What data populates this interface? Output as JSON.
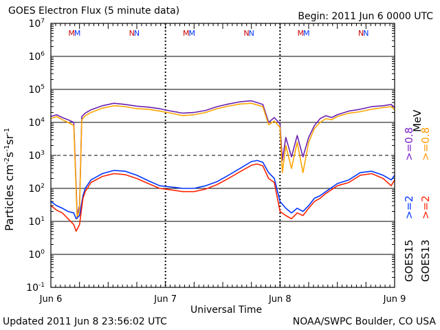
{
  "title": "GOES Electron Flux (5 minute data)",
  "begin": "Begin: 2011 Jun 6 0000 UTC",
  "updated": "Updated 2011 Jun  8 23:56:02 UTC",
  "credit": "NOAA/SWPC Boulder, CO USA",
  "legend": {
    "goes15": "GOES15",
    "goes13": "GOES13",
    "gt2": ">=2",
    "gt08": ">=0.8",
    "mev": "MeV"
  },
  "colors": {
    "goes15_2": "#0033ff",
    "goes13_2": "#ff2200",
    "goes15_08": "#6a1fb0",
    "goes13_08": "#ffa500"
  },
  "marks": [
    {
      "label": "M",
      "day": 0.2
    },
    {
      "label": "N",
      "day": 0.73
    },
    {
      "label": "M",
      "day": 1.2
    },
    {
      "label": "N",
      "day": 1.73
    },
    {
      "label": "M",
      "day": 2.2
    },
    {
      "label": "N",
      "day": 2.73
    }
  ],
  "chart_data": {
    "type": "line",
    "title": "GOES Electron Flux (5 minute data)",
    "xlabel": "Universal Time",
    "ylabel": "Particles cm-2s-1sr-1",
    "x_unit": "days since 2011 Jun 6 0000 UTC",
    "xlim": [
      0,
      3
    ],
    "ylim": [
      0.1,
      10000000
    ],
    "yscale": "log",
    "x_ticks": [
      {
        "x": 0,
        "label": "Jun 6"
      },
      {
        "x": 1,
        "label": "Jun 7"
      },
      {
        "x": 2,
        "label": "Jun 8"
      },
      {
        "x": 3,
        "label": "Jun 9"
      }
    ],
    "y_ticks": [
      {
        "base": "10",
        "exp": "7"
      },
      {
        "base": "10",
        "exp": "6"
      },
      {
        "base": "10",
        "exp": "5"
      },
      {
        "base": "10",
        "exp": "4"
      },
      {
        "base": "10",
        "exp": "3"
      },
      {
        "base": "10",
        "exp": "2"
      },
      {
        "base": "10",
        "exp": "1"
      },
      {
        "base": "10",
        "exp": "0"
      },
      {
        "base": "10",
        "exp": "-1"
      }
    ],
    "threshold": 1000,
    "series": [
      {
        "name": "GOES15 >=0.8 MeV",
        "color": "#6a1fb0",
        "x": [
          0,
          0.05,
          0.1,
          0.15,
          0.2,
          0.22,
          0.23,
          0.25,
          0.27,
          0.3,
          0.35,
          0.45,
          0.55,
          0.65,
          0.75,
          0.85,
          0.95,
          1.05,
          1.15,
          1.25,
          1.35,
          1.45,
          1.55,
          1.65,
          1.75,
          1.85,
          1.9,
          1.95,
          2.0,
          2.02,
          2.05,
          2.1,
          2.15,
          2.2,
          2.25,
          2.3,
          2.35,
          2.4,
          2.45,
          2.5,
          2.6,
          2.7,
          2.8,
          2.9,
          2.97,
          3.0
        ],
        "y": [
          15000,
          17000,
          14000,
          12000,
          10000,
          120,
          15,
          30,
          15000,
          19000,
          24000,
          32000,
          38000,
          35000,
          31000,
          29000,
          26000,
          22000,
          19000,
          20000,
          23000,
          30000,
          36000,
          42000,
          45000,
          35000,
          10000,
          14000,
          9000,
          700,
          3500,
          900,
          4000,
          900,
          3500,
          8000,
          13000,
          16000,
          14000,
          17000,
          22000,
          25000,
          30000,
          32000,
          35000,
          28000
        ]
      },
      {
        "name": "GOES13 >=0.8 MeV",
        "color": "#ffa500",
        "x": [
          0,
          0.05,
          0.1,
          0.15,
          0.2,
          0.22,
          0.23,
          0.25,
          0.27,
          0.3,
          0.35,
          0.45,
          0.55,
          0.65,
          0.75,
          0.85,
          0.95,
          1.05,
          1.15,
          1.25,
          1.35,
          1.45,
          1.55,
          1.65,
          1.75,
          1.85,
          1.9,
          1.95,
          2.0,
          2.02,
          2.05,
          2.1,
          2.15,
          2.2,
          2.25,
          2.3,
          2.35,
          2.4,
          2.45,
          2.5,
          2.6,
          2.7,
          2.8,
          2.9,
          2.97,
          3.0
        ],
        "y": [
          13000,
          15000,
          12000,
          10000,
          8000,
          90,
          12,
          25,
          12000,
          16000,
          20000,
          27000,
          32000,
          30000,
          26000,
          25000,
          22000,
          19000,
          16000,
          17000,
          20000,
          26000,
          31000,
          36000,
          38000,
          30000,
          8500,
          11000,
          7000,
          300,
          2000,
          400,
          2500,
          300,
          2500,
          6500,
          10000,
          13000,
          12000,
          15000,
          19000,
          21000,
          25000,
          28000,
          30000,
          24000
        ]
      },
      {
        "name": "GOES15 >=2 MeV",
        "color": "#0033ff",
        "x": [
          0,
          0.05,
          0.1,
          0.15,
          0.2,
          0.22,
          0.25,
          0.28,
          0.3,
          0.35,
          0.45,
          0.55,
          0.65,
          0.75,
          0.85,
          0.95,
          1.05,
          1.15,
          1.25,
          1.35,
          1.45,
          1.55,
          1.65,
          1.75,
          1.8,
          1.85,
          1.9,
          1.95,
          2.0,
          2.05,
          2.1,
          2.15,
          2.2,
          2.25,
          2.3,
          2.35,
          2.4,
          2.5,
          2.6,
          2.7,
          2.8,
          2.9,
          2.97,
          3.0
        ],
        "y": [
          40,
          30,
          25,
          20,
          18,
          12,
          15,
          60,
          100,
          180,
          280,
          350,
          330,
          250,
          170,
          120,
          110,
          100,
          100,
          120,
          160,
          250,
          400,
          650,
          700,
          620,
          300,
          200,
          40,
          25,
          18,
          25,
          20,
          30,
          50,
          60,
          80,
          140,
          180,
          300,
          330,
          250,
          180,
          250
        ]
      },
      {
        "name": "GOES13 >=2 MeV",
        "color": "#ff2200",
        "x": [
          0,
          0.05,
          0.1,
          0.15,
          0.2,
          0.22,
          0.25,
          0.28,
          0.3,
          0.35,
          0.45,
          0.55,
          0.65,
          0.75,
          0.85,
          0.95,
          1.05,
          1.15,
          1.25,
          1.35,
          1.45,
          1.55,
          1.65,
          1.75,
          1.8,
          1.85,
          1.9,
          1.95,
          2.0,
          2.05,
          2.1,
          2.15,
          2.2,
          2.25,
          2.3,
          2.35,
          2.4,
          2.5,
          2.6,
          2.7,
          2.8,
          2.9,
          2.97,
          3.0
        ],
        "y": [
          30,
          22,
          18,
          12,
          8,
          5,
          8,
          50,
          80,
          150,
          230,
          280,
          260,
          200,
          140,
          100,
          90,
          80,
          80,
          95,
          130,
          200,
          320,
          500,
          550,
          480,
          200,
          150,
          20,
          15,
          12,
          18,
          15,
          25,
          40,
          50,
          70,
          120,
          150,
          250,
          280,
          200,
          120,
          180
        ]
      }
    ]
  }
}
